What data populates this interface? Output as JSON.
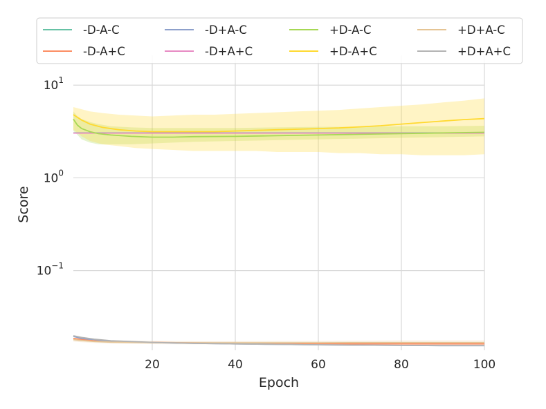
{
  "chart_data": {
    "type": "line",
    "title": "",
    "xlabel": "Epoch",
    "ylabel": "Score",
    "xlim": [
      1,
      100
    ],
    "ylim": [
      0.0138,
      21
    ],
    "yscale": "log",
    "grid": true,
    "legend_position": "top",
    "x_ticks": [
      {
        "value": 20,
        "label": "20"
      },
      {
        "value": 40,
        "label": "40"
      },
      {
        "value": 60,
        "label": "60"
      },
      {
        "value": 80,
        "label": "80"
      },
      {
        "value": 100,
        "label": "100"
      }
    ],
    "y_ticks": [
      {
        "value": 10,
        "base": "10",
        "exp": "1"
      },
      {
        "value": 1,
        "base": "10",
        "exp": "0"
      },
      {
        "value": 0.1,
        "base": "10",
        "exp": "−1"
      }
    ],
    "series": [
      {
        "name": "-D-A-C",
        "color": "#66c2a5",
        "x": [
          1,
          3,
          6,
          10,
          20,
          30,
          40,
          50,
          60,
          70,
          80,
          90,
          100
        ],
        "y": [
          3.05,
          3.05,
          3.05,
          3.05,
          3.05,
          3.05,
          3.05,
          3.05,
          3.05,
          3.05,
          3.05,
          3.05,
          3.05
        ]
      },
      {
        "name": "-D-A+C",
        "color": "#fc8d62",
        "x": [
          1,
          3,
          6,
          10,
          20,
          30,
          40,
          50,
          60,
          70,
          80,
          90,
          100
        ],
        "y": [
          0.0185,
          0.018,
          0.0175,
          0.017,
          0.0168,
          0.0166,
          0.0165,
          0.0164,
          0.0163,
          0.0162,
          0.0162,
          0.0162,
          0.0162
        ]
      },
      {
        "name": "-D+A-C",
        "color": "#8da0cb",
        "x": [
          1,
          3,
          6,
          10,
          20,
          30,
          40,
          50,
          60,
          70,
          80,
          90,
          100
        ],
        "y": [
          0.0195,
          0.0185,
          0.018,
          0.0172,
          0.0167,
          0.0164,
          0.0162,
          0.016,
          0.0158,
          0.0157,
          0.0156,
          0.0155,
          0.0155
        ]
      },
      {
        "name": "-D+A+C",
        "color": "#e78ac3",
        "x": [
          1,
          3,
          6,
          10,
          20,
          30,
          40,
          50,
          60,
          70,
          80,
          90,
          100
        ],
        "y": [
          3.04,
          3.04,
          3.04,
          3.04,
          3.04,
          3.04,
          3.04,
          3.04,
          3.04,
          3.04,
          3.04,
          3.04,
          3.04
        ]
      },
      {
        "name": "+D-A-C",
        "color": "#a6d854",
        "x": [
          1,
          2,
          3,
          5,
          7,
          10,
          15,
          20,
          25,
          30,
          40,
          50,
          60,
          70,
          80,
          90,
          100
        ],
        "y": [
          4.3,
          3.7,
          3.4,
          3.15,
          3.0,
          2.9,
          2.8,
          2.75,
          2.75,
          2.78,
          2.8,
          2.85,
          2.9,
          2.95,
          3.0,
          3.05,
          3.1
        ],
        "lower": [
          3.2,
          2.9,
          2.6,
          2.4,
          2.3,
          2.3,
          2.3,
          2.35,
          2.4,
          2.45,
          2.5,
          2.55,
          2.6,
          2.65,
          2.7,
          2.75,
          2.8
        ],
        "upper": [
          5.2,
          4.6,
          4.3,
          4.0,
          3.8,
          3.6,
          3.5,
          3.45,
          3.45,
          3.45,
          3.45,
          3.5,
          3.55,
          3.55,
          3.6,
          3.6,
          3.65
        ]
      },
      {
        "name": "+D-A+C",
        "color": "#ffd92f",
        "x": [
          1,
          3,
          5,
          8,
          12,
          16,
          20,
          25,
          30,
          35,
          40,
          45,
          50,
          55,
          60,
          65,
          70,
          75,
          80,
          85,
          90,
          95,
          100
        ],
        "y": [
          4.8,
          4.2,
          3.8,
          3.5,
          3.3,
          3.2,
          3.15,
          3.15,
          3.15,
          3.15,
          3.2,
          3.25,
          3.3,
          3.35,
          3.4,
          3.45,
          3.55,
          3.65,
          3.8,
          3.95,
          4.1,
          4.25,
          4.35
        ],
        "lower": [
          3.3,
          2.8,
          2.5,
          2.3,
          2.2,
          2.1,
          2.05,
          2.0,
          1.95,
          1.95,
          1.95,
          1.95,
          1.9,
          1.9,
          1.9,
          1.85,
          1.85,
          1.8,
          1.8,
          1.75,
          1.75,
          1.75,
          1.8
        ],
        "upper": [
          5.8,
          5.5,
          5.2,
          5.0,
          4.8,
          4.7,
          4.6,
          4.7,
          4.8,
          4.8,
          4.9,
          5.0,
          5.1,
          5.2,
          5.3,
          5.4,
          5.6,
          5.8,
          6.0,
          6.2,
          6.5,
          6.8,
          7.2
        ]
      },
      {
        "name": "+D+A-C",
        "color": "#e5c494",
        "x": [
          1,
          3,
          6,
          10,
          20,
          30,
          40,
          50,
          60,
          70,
          80,
          90,
          100
        ],
        "y": [
          0.018,
          0.0176,
          0.0172,
          0.0169,
          0.0167,
          0.0166,
          0.0166,
          0.0166,
          0.0166,
          0.0167,
          0.0167,
          0.0167,
          0.0167
        ],
        "lower": [
          0.0172,
          0.0169,
          0.0166,
          0.0163,
          0.0161,
          0.016,
          0.016,
          0.016,
          0.016,
          0.016,
          0.0159,
          0.0159,
          0.0159
        ],
        "upper": [
          0.019,
          0.0185,
          0.018,
          0.0176,
          0.0174,
          0.0173,
          0.0173,
          0.0174,
          0.0174,
          0.0175,
          0.0176,
          0.0176,
          0.0176
        ]
      },
      {
        "name": "+D+A+C",
        "color": "#b3b3b3",
        "x": [
          1,
          3,
          6,
          10,
          20,
          30,
          40,
          50,
          60,
          70,
          80,
          90,
          100
        ],
        "y": [
          0.0198,
          0.019,
          0.0182,
          0.0175,
          0.0168,
          0.0164,
          0.0162,
          0.016,
          0.0158,
          0.0157,
          0.0156,
          0.0155,
          0.0155
        ]
      }
    ]
  }
}
